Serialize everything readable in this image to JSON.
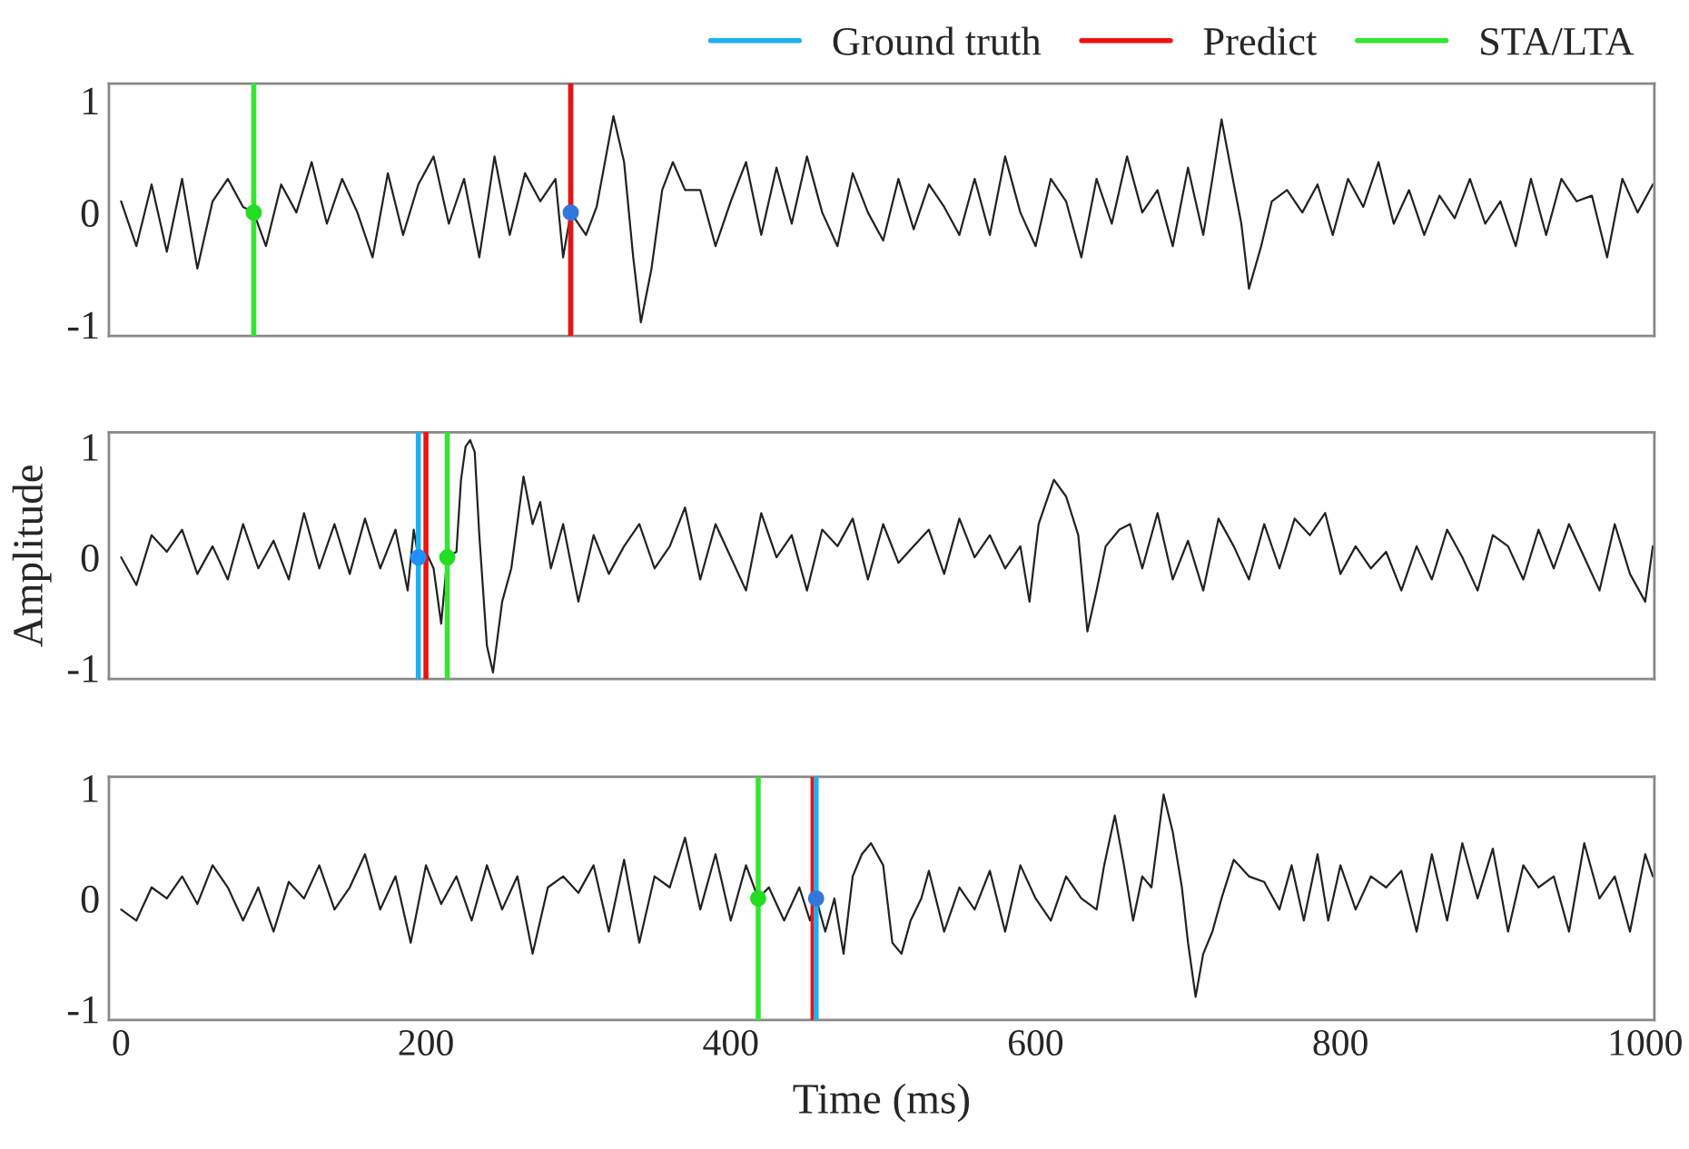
{
  "chart_data": [
    {
      "type": "line",
      "x": [
        0,
        10,
        20,
        30,
        40,
        50,
        60,
        70,
        80,
        87,
        95,
        105,
        115,
        125,
        135,
        145,
        155,
        165,
        175,
        185,
        195,
        205,
        215,
        225,
        235,
        245,
        255,
        265,
        275,
        285,
        290,
        295,
        305,
        312,
        323,
        330,
        336,
        341,
        348,
        355,
        362,
        370,
        380,
        390,
        400,
        410,
        420,
        430,
        440,
        450,
        460,
        470,
        480,
        490,
        500,
        510,
        520,
        530,
        540,
        550,
        560,
        570,
        580,
        590,
        600,
        610,
        620,
        630,
        640,
        650,
        660,
        670,
        680,
        690,
        700,
        710,
        716,
        722,
        728,
        735,
        740,
        748,
        755,
        765,
        775,
        785,
        795,
        805,
        815,
        825,
        835,
        845,
        855,
        865,
        875,
        885,
        895,
        905,
        915,
        925,
        935,
        945,
        955,
        965,
        975,
        985,
        995,
        1005
      ],
      "series": [
        {
          "color": "#222222",
          "values": [
            0.1,
            -0.3,
            0.25,
            -0.35,
            0.3,
            -0.5,
            0.1,
            0.3,
            0.05,
            0.0,
            -0.3,
            0.25,
            0.0,
            0.45,
            -0.1,
            0.3,
            0.0,
            -0.4,
            0.35,
            -0.2,
            0.25,
            0.5,
            -0.1,
            0.3,
            -0.4,
            0.5,
            -0.2,
            0.35,
            0.1,
            0.3,
            -0.4,
            0.0,
            -0.2,
            0.05,
            0.86,
            0.45,
            -0.4,
            -0.98,
            -0.5,
            0.2,
            0.45,
            0.2,
            0.2,
            -0.3,
            0.1,
            0.45,
            -0.2,
            0.4,
            -0.1,
            0.5,
            0.0,
            -0.3,
            0.35,
            0.0,
            -0.25,
            0.3,
            -0.15,
            0.25,
            0.05,
            -0.2,
            0.3,
            -0.2,
            0.5,
            0.0,
            -0.3,
            0.3,
            0.1,
            -0.4,
            0.3,
            -0.1,
            0.5,
            0.0,
            0.2,
            -0.3,
            0.4,
            -0.2,
            0.3,
            0.83,
            0.4,
            -0.1,
            -0.68,
            -0.3,
            0.1,
            0.2,
            0.0,
            0.25,
            -0.2,
            0.3,
            0.05,
            0.45,
            -0.1,
            0.2,
            -0.2,
            0.15,
            -0.05,
            0.3,
            -0.1,
            0.1,
            -0.3,
            0.3,
            -0.2,
            0.3,
            0.1,
            0.15,
            -0.4,
            0.3,
            0.0,
            0.25
          ]
        },
        {
          "type": "scatter",
          "x": [
            87,
            295
          ],
          "values": [
            0,
            0
          ],
          "colors": [
            "#22dd22",
            "#3377dd"
          ],
          "marker": "circle"
        }
      ],
      "xlim": [
        -8,
        1006
      ],
      "ylim": [
        -1.1,
        1.15
      ],
      "yticks": [
        -1,
        0,
        1
      ],
      "xticks": [
        0,
        200,
        400,
        600,
        800,
        1000
      ],
      "tick_labels": "y",
      "legend": "top right",
      "ref_lines": [
        {
          "axis": "x",
          "value": 295,
          "label": "Ground truth",
          "color": "#1eb0f0"
        },
        {
          "axis": "x",
          "value": 295,
          "label": "Predict",
          "color": "#ee1111"
        },
        {
          "axis": "x",
          "value": 87,
          "label": "STA/LTA",
          "color": "#33e633"
        }
      ]
    },
    {
      "type": "line",
      "x": [
        0,
        10,
        20,
        30,
        40,
        50,
        60,
        70,
        80,
        90,
        100,
        110,
        120,
        130,
        140,
        150,
        160,
        170,
        180,
        188,
        192,
        195,
        200,
        205,
        210,
        214,
        220,
        223,
        226,
        229,
        232,
        235,
        240,
        244,
        250,
        256,
        264,
        270,
        275,
        282,
        290,
        300,
        310,
        320,
        330,
        340,
        350,
        360,
        370,
        380,
        390,
        400,
        410,
        420,
        430,
        440,
        450,
        460,
        470,
        480,
        490,
        500,
        510,
        520,
        530,
        540,
        550,
        560,
        570,
        580,
        590,
        596,
        602,
        612,
        620,
        628,
        634,
        640,
        646,
        655,
        662,
        670,
        680,
        690,
        700,
        710,
        720,
        730,
        740,
        750,
        760,
        770,
        780,
        790,
        800,
        810,
        820,
        830,
        840,
        850,
        860,
        870,
        880,
        890,
        900,
        910,
        920,
        930,
        940,
        950,
        960,
        970,
        980,
        990,
        1000,
        1005
      ],
      "series": [
        {
          "color": "#222222",
          "values": [
            0.0,
            -0.25,
            0.2,
            0.05,
            0.25,
            -0.15,
            0.1,
            -0.2,
            0.3,
            -0.1,
            0.15,
            -0.2,
            0.4,
            -0.1,
            0.3,
            -0.15,
            0.35,
            -0.1,
            0.25,
            -0.3,
            0.25,
            0.0,
            0.05,
            -0.1,
            -0.6,
            0.0,
            0.05,
            0.7,
            1.0,
            1.06,
            0.95,
            0.2,
            -0.8,
            -1.04,
            -0.4,
            -0.1,
            0.73,
            0.3,
            0.5,
            -0.1,
            0.3,
            -0.4,
            0.2,
            -0.15,
            0.1,
            0.3,
            -0.1,
            0.1,
            0.45,
            -0.2,
            0.3,
            0.0,
            -0.3,
            0.4,
            0.0,
            0.2,
            -0.3,
            0.25,
            0.1,
            0.35,
            -0.2,
            0.3,
            -0.05,
            0.1,
            0.25,
            -0.15,
            0.35,
            0.0,
            0.2,
            -0.1,
            0.1,
            -0.4,
            0.3,
            0.7,
            0.55,
            0.2,
            -0.67,
            -0.3,
            0.1,
            0.25,
            0.3,
            -0.1,
            0.4,
            -0.2,
            0.15,
            -0.3,
            0.35,
            0.1,
            -0.2,
            0.3,
            -0.1,
            0.35,
            0.2,
            0.4,
            -0.15,
            0.1,
            -0.1,
            0.05,
            -0.3,
            0.1,
            -0.2,
            0.25,
            0.0,
            -0.3,
            0.2,
            0.1,
            -0.2,
            0.25,
            -0.1,
            0.3,
            0.0,
            -0.3,
            0.3,
            -0.15,
            -0.4,
            0.1
          ]
        },
        {
          "type": "scatter",
          "x": [
            195,
            214
          ],
          "values": [
            0,
            0
          ],
          "colors": [
            "#1e90ff",
            "#22dd22"
          ],
          "marker": "circle"
        }
      ],
      "xlim": [
        -8,
        1006
      ],
      "ylim": [
        -1.1,
        1.13
      ],
      "yticks": [
        -1,
        0,
        1
      ],
      "xticks": [
        0,
        200,
        400,
        600,
        800,
        1000
      ],
      "tick_labels": "y",
      "ylabel": "Amplitude",
      "ref_lines": [
        {
          "axis": "x",
          "value": 195,
          "color": "#1eb0f0"
        },
        {
          "axis": "x",
          "value": 200,
          "color": "#ee1111"
        },
        {
          "axis": "x",
          "value": 214,
          "color": "#33e633"
        }
      ]
    },
    {
      "type": "line",
      "x": [
        0,
        10,
        20,
        30,
        40,
        50,
        60,
        70,
        80,
        90,
        100,
        110,
        120,
        130,
        140,
        150,
        160,
        170,
        180,
        190,
        200,
        210,
        220,
        230,
        240,
        250,
        260,
        270,
        280,
        290,
        300,
        310,
        320,
        330,
        340,
        350,
        360,
        370,
        380,
        390,
        400,
        410,
        418,
        425,
        435,
        445,
        452,
        456,
        462,
        468,
        474,
        480,
        486,
        492,
        500,
        506,
        512,
        518,
        525,
        530,
        540,
        550,
        560,
        570,
        580,
        590,
        600,
        610,
        620,
        630,
        640,
        645,
        652,
        658,
        664,
        670,
        676,
        684,
        690,
        696,
        700,
        705,
        710,
        716,
        722,
        730,
        740,
        750,
        760,
        768,
        776,
        785,
        792,
        800,
        810,
        820,
        830,
        840,
        850,
        860,
        870,
        880,
        890,
        900,
        910,
        920,
        930,
        940,
        950,
        960,
        970,
        980,
        990,
        1000,
        1005
      ],
      "series": [
        {
          "color": "#222222",
          "values": [
            -0.1,
            -0.2,
            0.1,
            0.0,
            0.2,
            -0.05,
            0.3,
            0.1,
            -0.2,
            0.1,
            -0.3,
            0.15,
            0.0,
            0.3,
            -0.1,
            0.1,
            0.4,
            -0.1,
            0.2,
            -0.4,
            0.3,
            -0.05,
            0.2,
            -0.2,
            0.3,
            -0.1,
            0.2,
            -0.5,
            0.1,
            0.2,
            0.05,
            0.3,
            -0.3,
            0.35,
            -0.4,
            0.2,
            0.1,
            0.55,
            -0.1,
            0.4,
            -0.2,
            0.3,
            0.0,
            0.1,
            -0.2,
            0.1,
            -0.2,
            0.0,
            -0.3,
            0.0,
            -0.5,
            0.2,
            0.4,
            0.5,
            0.3,
            -0.4,
            -0.5,
            -0.2,
            0.0,
            0.25,
            -0.3,
            0.1,
            -0.1,
            0.25,
            -0.3,
            0.3,
            0.0,
            -0.2,
            0.2,
            0.0,
            -0.1,
            0.3,
            0.75,
            0.3,
            -0.2,
            0.2,
            0.1,
            0.94,
            0.6,
            0.1,
            -0.4,
            -0.89,
            -0.5,
            -0.3,
            0.0,
            0.35,
            0.2,
            0.15,
            -0.1,
            0.3,
            -0.2,
            0.4,
            -0.2,
            0.3,
            -0.1,
            0.2,
            0.1,
            0.25,
            -0.3,
            0.4,
            -0.2,
            0.5,
            0.0,
            0.45,
            -0.3,
            0.3,
            0.1,
            0.2,
            -0.3,
            0.5,
            0.0,
            0.2,
            -0.3,
            0.4,
            0.2
          ]
        },
        {
          "type": "scatter",
          "x": [
            418,
            456
          ],
          "values": [
            0,
            0
          ],
          "colors": [
            "#22dd22",
            "#3377dd"
          ],
          "marker": "circle"
        }
      ],
      "xlim": [
        -8,
        1006
      ],
      "ylim": [
        -1.1,
        1.1
      ],
      "yticks": [
        -1,
        0,
        1
      ],
      "xticks": [
        0,
        200,
        400,
        600,
        800,
        1000
      ],
      "xlabel": "Time (ms)",
      "ref_lines": [
        {
          "axis": "x",
          "value": 418,
          "color": "#33e633"
        },
        {
          "axis": "x",
          "value": 454,
          "color": "#ee1111"
        },
        {
          "axis": "x",
          "value": 456,
          "color": "#1eb0f0"
        }
      ]
    }
  ]
}
